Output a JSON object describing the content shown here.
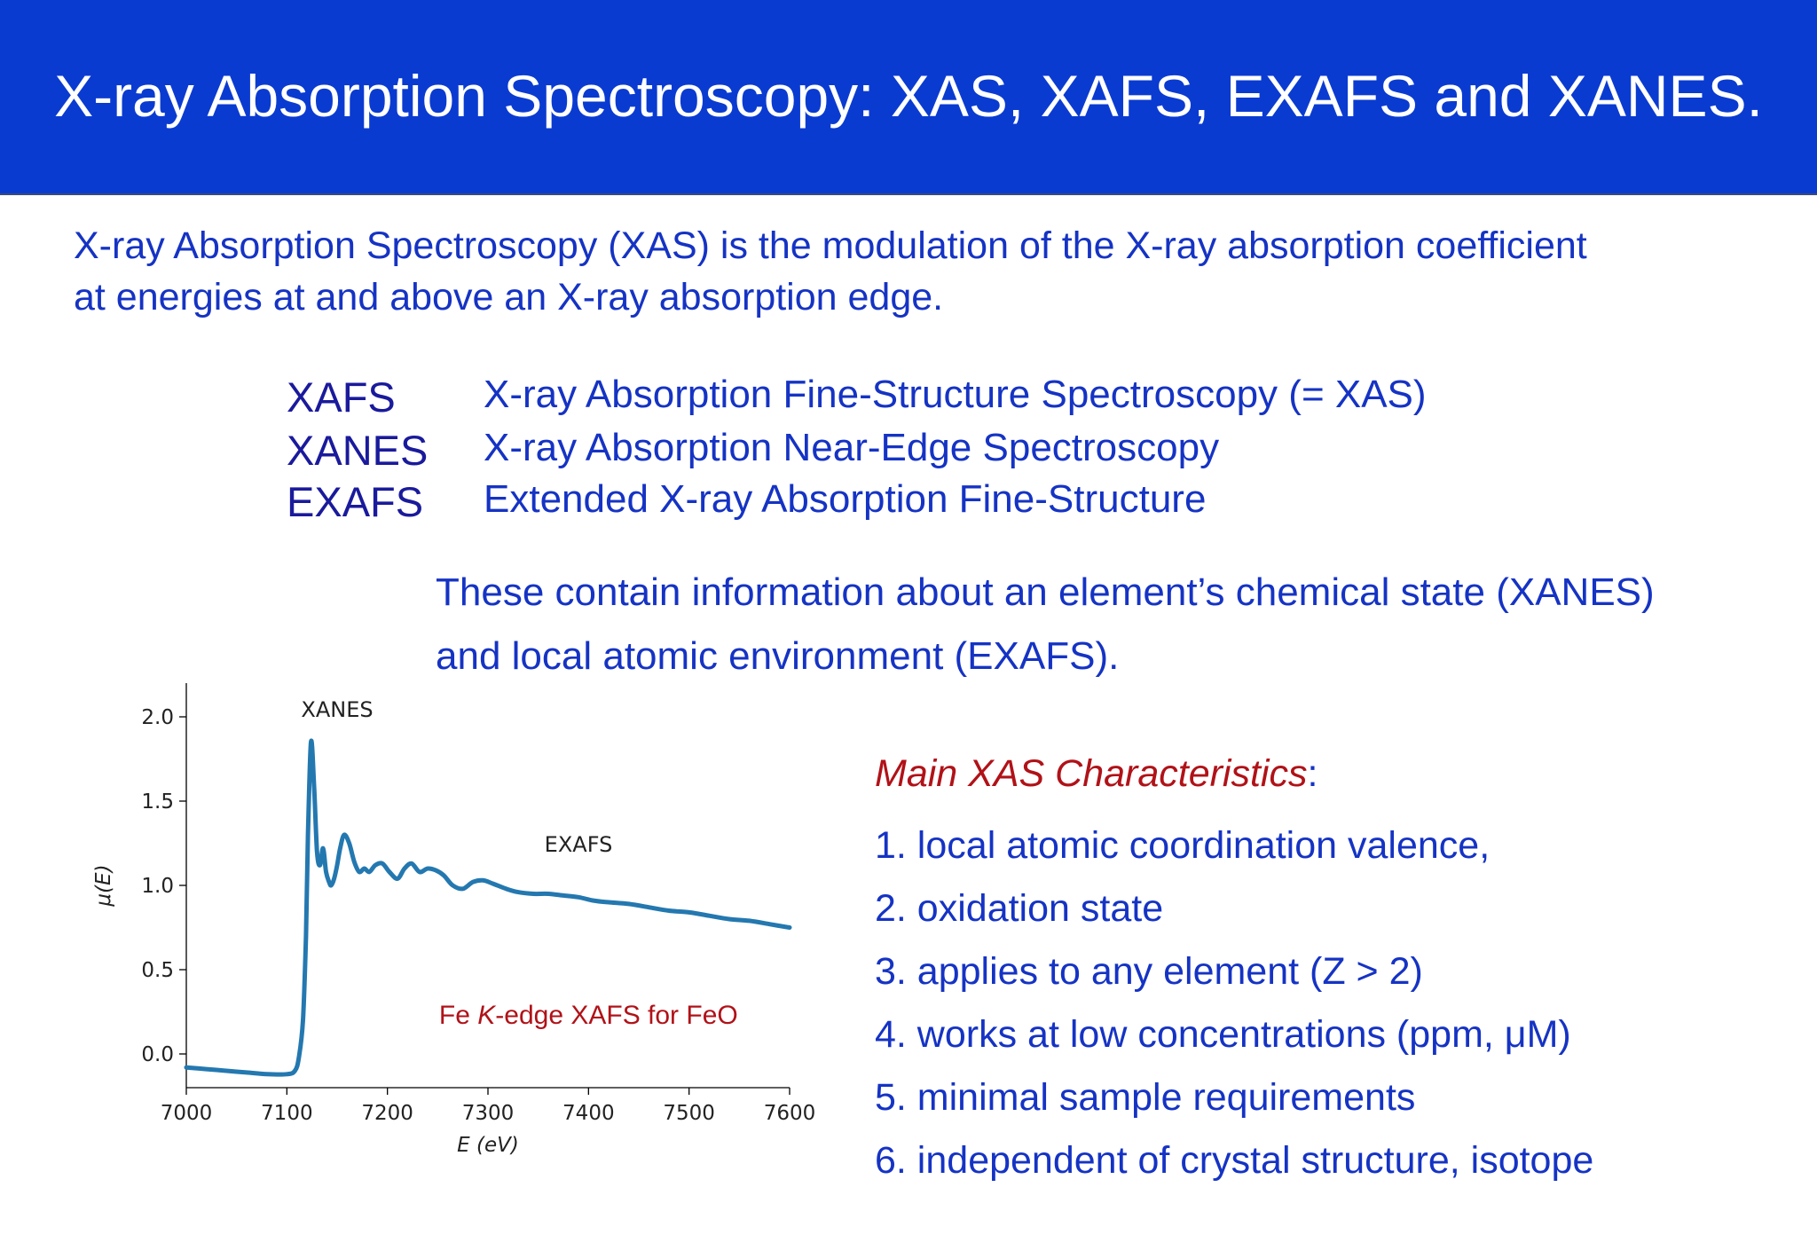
{
  "header": {
    "title": "X-ray Absorption Spectroscopy: XAS, XAFS, EXAFS and XANES.",
    "bg_color": "#0a3bd1"
  },
  "intro": {
    "line1": "X-ray Absorption Spectroscopy (XAS) is the modulation of the X-ray absorption coefficient",
    "line2": "at energies at and above an X-ray absorption edge."
  },
  "definitions": [
    {
      "acronym": "XAFS",
      "meaning": "X-ray Absorption Fine-Structure Spectroscopy (= XAS)"
    },
    {
      "acronym": "XANES",
      "meaning": "X-ray Absorption Near-Edge Spectroscopy"
    },
    {
      "acronym": "EXAFS",
      "meaning": "Extended X-ray Absorption Fine-Structure"
    }
  ],
  "info": {
    "line1": "These contain information about an element’s chemical state (XANES)",
    "line2": "and local atomic environment (EXAFS)."
  },
  "characteristics": {
    "heading_italic": "Main XAS Characteristics",
    "heading_suffix": ":",
    "items": [
      "1. local atomic coordination  valence,",
      "2. oxidation state",
      "3. applies to any element (Z > 2)",
      "4. works at low concentrations (ppm, μM)",
      "5. minimal sample requirements",
      "6. independent of crystal structure, isotope"
    ]
  },
  "colors": {
    "text_blue": "#1533c4",
    "acronym_blue": "#1a1a9c",
    "accent_red": "#b01218",
    "line": "#2478b0"
  },
  "chart_data": {
    "type": "line",
    "xlabel": "E (eV)",
    "ylabel": "μ(E)",
    "xlim": [
      7000,
      7600
    ],
    "ylim": [
      -0.2,
      2.2
    ],
    "xticks": [
      7000,
      7100,
      7200,
      7300,
      7400,
      7500,
      7600
    ],
    "yticks": [
      0.0,
      0.5,
      1.0,
      1.5,
      2.0
    ],
    "xtick_labels": [
      "7000",
      "7100",
      "7200",
      "7300",
      "7400",
      "7500",
      "7600"
    ],
    "ytick_labels": [
      "0.0",
      "0.5",
      "1.0",
      "1.5",
      "2.0"
    ],
    "annotations": [
      {
        "text": "XANES",
        "x": 7150,
        "y": 2.0
      },
      {
        "text": "EXAFS",
        "x": 7390,
        "y": 1.2
      }
    ],
    "caption": {
      "text_pre": "Fe ",
      "text_italic": "K",
      "text_post": "-edge XAFS for FeO",
      "x": 7400,
      "y": 0.18
    },
    "grid": false,
    "series": [
      {
        "color": "#2478b0",
        "x": [
          7000,
          7020,
          7040,
          7060,
          7080,
          7100,
          7108,
          7112,
          7116,
          7119,
          7121,
          7124,
          7127,
          7130,
          7133,
          7136,
          7139,
          7142,
          7144,
          7147,
          7150,
          7153,
          7157,
          7162,
          7167,
          7172,
          7177,
          7182,
          7188,
          7195,
          7202,
          7210,
          7217,
          7224,
          7232,
          7240,
          7248,
          7256,
          7265,
          7275,
          7285,
          7295,
          7305,
          7318,
          7330,
          7345,
          7360,
          7375,
          7390,
          7405,
          7420,
          7440,
          7460,
          7480,
          7500,
          7520,
          7540,
          7560,
          7580,
          7600
        ],
        "y": [
          -0.08,
          -0.09,
          -0.1,
          -0.11,
          -0.12,
          -0.12,
          -0.1,
          -0.02,
          0.2,
          0.7,
          1.3,
          1.85,
          1.6,
          1.2,
          1.12,
          1.22,
          1.08,
          1.02,
          1.0,
          1.04,
          1.12,
          1.22,
          1.3,
          1.25,
          1.14,
          1.08,
          1.1,
          1.08,
          1.12,
          1.13,
          1.08,
          1.04,
          1.1,
          1.13,
          1.08,
          1.1,
          1.09,
          1.06,
          1.0,
          0.98,
          1.02,
          1.03,
          1.01,
          0.98,
          0.96,
          0.95,
          0.95,
          0.94,
          0.93,
          0.91,
          0.9,
          0.89,
          0.87,
          0.85,
          0.84,
          0.82,
          0.8,
          0.79,
          0.77,
          0.75
        ]
      }
    ]
  }
}
